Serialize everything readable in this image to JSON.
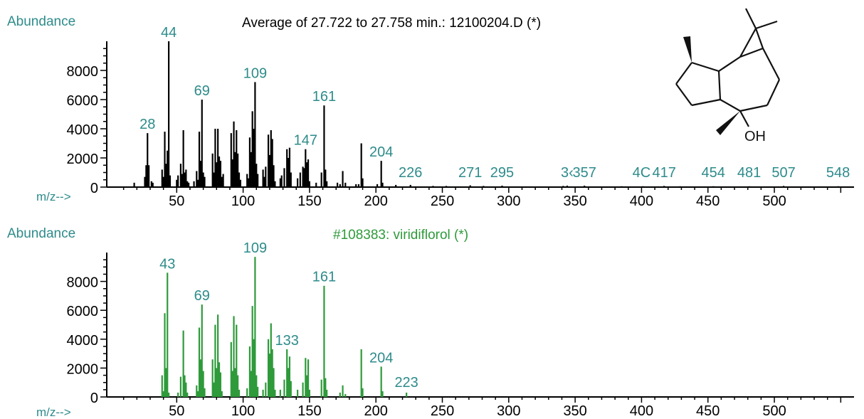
{
  "colors": {
    "teal": "#2E8B8B",
    "black": "#000000",
    "green": "#2E9A3A"
  },
  "chart_data": [
    {
      "type": "bar",
      "title": "Average of 27.722 to 27.758 min.: 12100204.D (*)",
      "ylabel": "Abundance",
      "xlabel": "m/z-->",
      "xlim": [
        0,
        560
      ],
      "ylim": [
        0,
        10000
      ],
      "xticks": [
        "50",
        "100",
        "150",
        "200",
        "250",
        "300",
        "350",
        "400",
        "450",
        "500"
      ],
      "yticks": [
        "0",
        "2000",
        "4000",
        "6000",
        "8000"
      ],
      "peak_labels": [
        {
          "mz": 28,
          "text": "28"
        },
        {
          "mz": 44,
          "text": "44"
        },
        {
          "mz": 69,
          "text": "69"
        },
        {
          "mz": 109,
          "text": "109"
        },
        {
          "mz": 147,
          "text": "147"
        },
        {
          "mz": 161,
          "text": "161"
        },
        {
          "mz": 204,
          "text": "204"
        },
        {
          "mz": 226,
          "text": "226"
        },
        {
          "mz": 271,
          "text": "271"
        },
        {
          "mz": 295,
          "text": "295"
        },
        {
          "mz": 344,
          "text": "3‹"
        },
        {
          "mz": 357,
          "text": "357"
        },
        {
          "mz": 400,
          "text": "4C"
        },
        {
          "mz": 417,
          "text": "417"
        },
        {
          "mz": 454,
          "text": "454"
        },
        {
          "mz": 481,
          "text": "481"
        },
        {
          "mz": 507,
          "text": "507"
        },
        {
          "mz": 548,
          "text": "548"
        }
      ],
      "peaks": [
        [
          18,
          300
        ],
        [
          26,
          700
        ],
        [
          27,
          1500
        ],
        [
          28,
          3700
        ],
        [
          29,
          1500
        ],
        [
          31,
          400
        ],
        [
          32,
          300
        ],
        [
          39,
          1200
        ],
        [
          40,
          700
        ],
        [
          41,
          3800
        ],
        [
          42,
          1600
        ],
        [
          43,
          2500
        ],
        [
          44,
          10000
        ],
        [
          45,
          800
        ],
        [
          50,
          500
        ],
        [
          51,
          800
        ],
        [
          53,
          1600
        ],
        [
          54,
          900
        ],
        [
          55,
          3900
        ],
        [
          56,
          1000
        ],
        [
          57,
          1200
        ],
        [
          58,
          400
        ],
        [
          59,
          300
        ],
        [
          63,
          400
        ],
        [
          65,
          1100
        ],
        [
          66,
          500
        ],
        [
          67,
          3800
        ],
        [
          68,
          1800
        ],
        [
          69,
          6000
        ],
        [
          70,
          1000
        ],
        [
          71,
          700
        ],
        [
          77,
          2300
        ],
        [
          78,
          1000
        ],
        [
          79,
          4000
        ],
        [
          80,
          1700
        ],
        [
          81,
          4000
        ],
        [
          82,
          2100
        ],
        [
          83,
          1800
        ],
        [
          84,
          700
        ],
        [
          85,
          900
        ],
        [
          91,
          3700
        ],
        [
          92,
          1900
        ],
        [
          93,
          4500
        ],
        [
          94,
          2400
        ],
        [
          95,
          3900
        ],
        [
          96,
          2300
        ],
        [
          97,
          1000
        ],
        [
          98,
          500
        ],
        [
          103,
          900
        ],
        [
          104,
          600
        ],
        [
          105,
          3400
        ],
        [
          106,
          2400
        ],
        [
          107,
          5200
        ],
        [
          108,
          4000
        ],
        [
          109,
          7200
        ],
        [
          110,
          1600
        ],
        [
          111,
          900
        ],
        [
          115,
          1200
        ],
        [
          116,
          700
        ],
        [
          117,
          1400
        ],
        [
          119,
          3600
        ],
        [
          120,
          2200
        ],
        [
          121,
          3900
        ],
        [
          122,
          3300
        ],
        [
          123,
          1500
        ],
        [
          124,
          400
        ],
        [
          128,
          600
        ],
        [
          129,
          800
        ],
        [
          131,
          1300
        ],
        [
          133,
          2600
        ],
        [
          134,
          2000
        ],
        [
          135,
          2700
        ],
        [
          136,
          1000
        ],
        [
          141,
          600
        ],
        [
          143,
          1000
        ],
        [
          145,
          1400
        ],
        [
          146,
          1300
        ],
        [
          147,
          2600
        ],
        [
          148,
          1700
        ],
        [
          149,
          1900
        ],
        [
          150,
          400
        ],
        [
          155,
          300
        ],
        [
          159,
          1000
        ],
        [
          161,
          5600
        ],
        [
          162,
          1200
        ],
        [
          163,
          400
        ],
        [
          171,
          300
        ],
        [
          173,
          200
        ],
        [
          175,
          1100
        ],
        [
          177,
          300
        ],
        [
          185,
          200
        ],
        [
          187,
          200
        ],
        [
          189,
          3000
        ],
        [
          190,
          600
        ],
        [
          201,
          200
        ],
        [
          204,
          1800
        ],
        [
          205,
          300
        ],
        [
          215,
          150
        ],
        [
          226,
          150
        ],
        [
          243,
          80
        ],
        [
          253,
          80
        ],
        [
          271,
          120
        ],
        [
          281,
          80
        ],
        [
          295,
          100
        ],
        [
          341,
          80
        ],
        [
          344,
          100
        ],
        [
          357,
          100
        ],
        [
          385,
          60
        ],
        [
          401,
          60
        ],
        [
          417,
          80
        ],
        [
          429,
          60
        ],
        [
          454,
          60
        ],
        [
          481,
          60
        ],
        [
          507,
          80
        ],
        [
          548,
          60
        ]
      ]
    },
    {
      "type": "bar",
      "title": "#108383: viridiflorol (*)",
      "ylabel": "Abundance",
      "xlabel": "m/z-->",
      "xlim": [
        0,
        560
      ],
      "ylim": [
        0,
        10000
      ],
      "xticks": [
        "50",
        "100",
        "150",
        "200",
        "250",
        "300",
        "350",
        "400",
        "450",
        "500"
      ],
      "yticks": [
        "0",
        "2000",
        "4000",
        "6000",
        "8000"
      ],
      "peak_labels": [
        {
          "mz": 43,
          "text": "43"
        },
        {
          "mz": 69,
          "text": "69"
        },
        {
          "mz": 109,
          "text": "109"
        },
        {
          "mz": 133,
          "text": "133"
        },
        {
          "mz": 161,
          "text": "161"
        },
        {
          "mz": 204,
          "text": "204"
        },
        {
          "mz": 223,
          "text": "223"
        }
      ],
      "peaks": [
        [
          39,
          1500
        ],
        [
          40,
          400
        ],
        [
          41,
          5800
        ],
        [
          42,
          2000
        ],
        [
          43,
          8600
        ],
        [
          44,
          300
        ],
        [
          51,
          300
        ],
        [
          53,
          1400
        ],
        [
          55,
          4600
        ],
        [
          56,
          1500
        ],
        [
          57,
          1000
        ],
        [
          58,
          300
        ],
        [
          65,
          800
        ],
        [
          66,
          400
        ],
        [
          67,
          4800
        ],
        [
          68,
          2600
        ],
        [
          69,
          6400
        ],
        [
          70,
          1800
        ],
        [
          71,
          600
        ],
        [
          77,
          2600
        ],
        [
          78,
          1000
        ],
        [
          79,
          5000
        ],
        [
          80,
          2000
        ],
        [
          81,
          5700
        ],
        [
          82,
          2400
        ],
        [
          83,
          1700
        ],
        [
          84,
          400
        ],
        [
          91,
          3800
        ],
        [
          92,
          1800
        ],
        [
          93,
          5600
        ],
        [
          94,
          2000
        ],
        [
          95,
          5000
        ],
        [
          96,
          1500
        ],
        [
          97,
          500
        ],
        [
          103,
          600
        ],
        [
          105,
          3500
        ],
        [
          106,
          1800
        ],
        [
          107,
          6300
        ],
        [
          108,
          4000
        ],
        [
          109,
          9700
        ],
        [
          110,
          1500
        ],
        [
          111,
          700
        ],
        [
          115,
          500
        ],
        [
          117,
          1000
        ],
        [
          119,
          4000
        ],
        [
          120,
          3000
        ],
        [
          121,
          5100
        ],
        [
          122,
          3300
        ],
        [
          123,
          2000
        ],
        [
          124,
          500
        ],
        [
          128,
          500
        ],
        [
          131,
          1200
        ],
        [
          133,
          3300
        ],
        [
          134,
          2000
        ],
        [
          135,
          2800
        ],
        [
          136,
          1100
        ],
        [
          141,
          500
        ],
        [
          145,
          1000
        ],
        [
          147,
          2700
        ],
        [
          148,
          1500
        ],
        [
          149,
          2600
        ],
        [
          150,
          500
        ],
        [
          159,
          1200
        ],
        [
          161,
          7700
        ],
        [
          162,
          1300
        ],
        [
          163,
          500
        ],
        [
          173,
          300
        ],
        [
          175,
          800
        ],
        [
          177,
          200
        ],
        [
          189,
          3300
        ],
        [
          190,
          600
        ],
        [
          204,
          2100
        ],
        [
          205,
          400
        ],
        [
          223,
          300
        ]
      ]
    }
  ],
  "structure": {
    "label": "OH"
  }
}
